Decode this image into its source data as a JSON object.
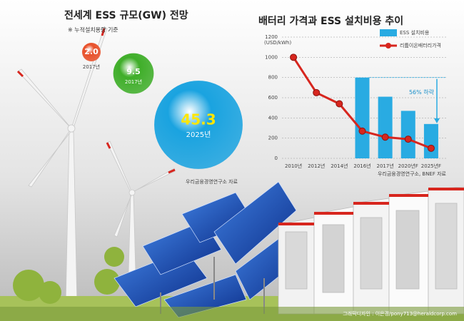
{
  "chart_data": [
    {
      "type": "bubble",
      "title": "전세계 ESS 규모(GW) 전망",
      "subtitle": "※ 누적설치용량 기준",
      "categories": [
        "2017년",
        "2017년",
        "2025년"
      ],
      "values": [
        2,
        9.5,
        45.3
      ],
      "value_labels": [
        "2.0",
        "9.5",
        "45.3"
      ],
      "colors": [
        "#e8502a",
        "#3fae29",
        "#1aa3e0"
      ],
      "source": "우리금융경영연구소 자료"
    },
    {
      "type": "bar_line",
      "title": "배터리 가격과 ESS 설치비용 추이",
      "y_label": "(USD/kWh)",
      "categories": [
        "2010년",
        "2012년",
        "2014년",
        "2016년",
        "2017년",
        "2020년F",
        "2025년F"
      ],
      "series": [
        {
          "name": "ESS 설치비용",
          "type": "bar",
          "color": "#29abe2",
          "values": [
            null,
            null,
            null,
            800,
            610,
            470,
            340
          ]
        },
        {
          "name": "리튬이온배터리가격",
          "type": "line",
          "color": "#d7261e",
          "values": [
            1000,
            650,
            540,
            270,
            210,
            190,
            100
          ]
        }
      ],
      "ylim": [
        0,
        1200
      ],
      "yticks": [
        0,
        200,
        400,
        600,
        800,
        1000,
        1200
      ],
      "grid": true,
      "legend": "upper right",
      "annotation": "56% 하락",
      "source": "우리금융경영연구소, BNEF 자료"
    }
  ],
  "credit": "그래픽디자인 : 이은경/pony713@heraldcorp.com"
}
